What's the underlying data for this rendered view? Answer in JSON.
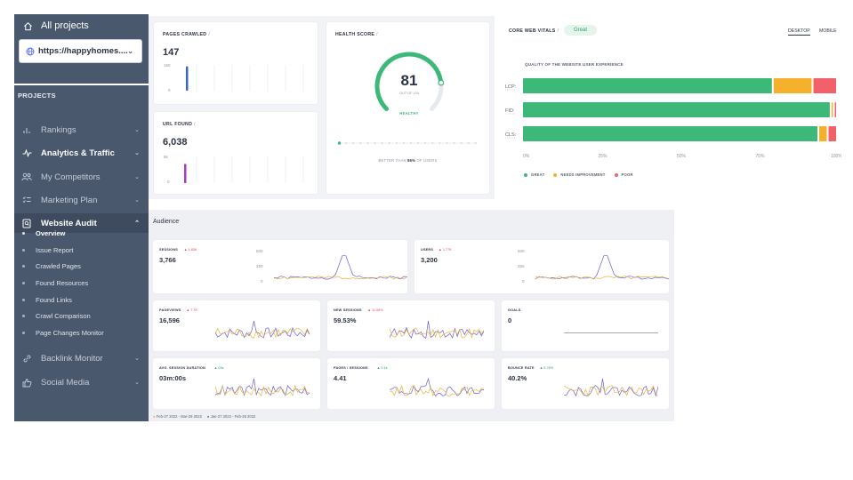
{
  "sidebar": {
    "all_projects": "All projects",
    "project_url": "https://happyhomes....",
    "projects_label": "PROJECTS",
    "nav": [
      {
        "label": "Rankings",
        "icon": "bar-chart-icon"
      },
      {
        "label": "Analytics & Traffic",
        "icon": "pulse-icon"
      },
      {
        "label": "My Competitors",
        "icon": "users-icon"
      },
      {
        "label": "Marketing Plan",
        "icon": "checklist-icon"
      },
      {
        "label": "Website Audit",
        "icon": "audit-icon"
      }
    ],
    "audit_sub": [
      "Overview",
      "Issue Report",
      "Crawled Pages",
      "Found Resources",
      "Found Links",
      "Crawl Comparison",
      "Page Changes Monitor"
    ],
    "nav_bottom": [
      {
        "label": "Backlink Monitor",
        "icon": "link-icon"
      },
      {
        "label": "Social Media",
        "icon": "thumbs-up-icon"
      }
    ]
  },
  "pages_crawled": {
    "title": "PAGES CRAWLED",
    "value": "147",
    "tick_top": "150",
    "tick_bottom": "0",
    "bar_fraction": 0.98
  },
  "url_found": {
    "title": "URL FOUND",
    "value": "6,038",
    "tick_top": "6k",
    "tick_bottom": "0",
    "bar_fraction": 0.98
  },
  "health": {
    "title": "HEALTH SCORE",
    "score": "81",
    "out_of": "OUT OF 100",
    "status": "HEALTHY",
    "better_prefix": "BETTER THAN",
    "better_pct": "86%",
    "better_suffix": "OF USERS",
    "score_value": 81
  },
  "vitals": {
    "title": "CORE WEB VITALS",
    "badge": "Great",
    "tab_desktop": "DESKTOP",
    "tab_mobile": "MOBILE",
    "subtitle": "QUALITY OF THE WEBSITE USER EXPERIENCE",
    "rows": [
      {
        "label": "LCP",
        "great": 0.82,
        "needs": 0.13,
        "poor": 0.08
      },
      {
        "label": "FID",
        "great": 0.98,
        "needs": 0.01,
        "poor": 0.01
      },
      {
        "label": "CLS",
        "great": 0.95,
        "needs": 0.03,
        "poor": 0.03
      }
    ],
    "axis": [
      "0%",
      "25%",
      "50%",
      "75%",
      "100%"
    ],
    "legend": [
      "GREAT",
      "NEEDS IMPROVEMENT",
      "POOR"
    ],
    "colors": {
      "great": "#3cb878",
      "needs": "#f6b12c",
      "poor": "#f2606a"
    }
  },
  "audience": {
    "title": "Audience",
    "metrics": [
      {
        "label": "SESSIONS",
        "delta": "▲ 1.83K",
        "value": "3,766",
        "up": false,
        "ticks": [
          "500",
          "250",
          "0"
        ]
      },
      {
        "label": "USERS",
        "delta": "▲ 1.77K",
        "value": "3,200",
        "up": false,
        "ticks": [
          "500",
          "250",
          "0"
        ]
      },
      {
        "label": "PAGEVIEWS",
        "delta": "▲ 7.7K",
        "value": "16,596",
        "up": false
      },
      {
        "label": "NEW SESSIONS",
        "delta": "▲ 11.08%",
        "value": "59.53%",
        "up": false
      },
      {
        "label": "GOALS",
        "delta": "",
        "value": "0",
        "up": true
      },
      {
        "label": "AVG. SESSION DURATION",
        "delta": "▲ 03s",
        "value": "03m:00s",
        "up": true
      },
      {
        "label": "PAGES / SESSIONS",
        "delta": "▲ 0.1k",
        "value": "4.41",
        "up": true
      },
      {
        "label": "BOUNCE RATE",
        "delta": "▲ 5.76%",
        "value": "40.2%",
        "up": true
      }
    ],
    "range_current": "Feb-27 2022 - Mar-29 2022",
    "range_previous": "Jan-27 2022 - Feb-26 2022"
  }
}
